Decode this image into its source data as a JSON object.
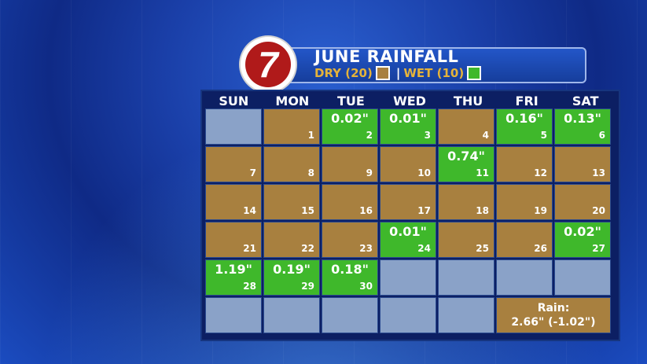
{
  "header": {
    "title": "JUNE RAINFALL",
    "dry_label": "DRY (20)",
    "wet_label": "WET (10)",
    "separator": "|",
    "logo_text": "7"
  },
  "days_of_week": [
    "SUN",
    "MON",
    "TUE",
    "WED",
    "THU",
    "FRI",
    "SAT"
  ],
  "colors": {
    "dry": "#a8803f",
    "wet": "#3fb82b",
    "empty": "#8aa2c8"
  },
  "cells": [
    {
      "status": "empty",
      "day": "",
      "amount": ""
    },
    {
      "status": "dry",
      "day": "1",
      "amount": ""
    },
    {
      "status": "wet",
      "day": "2",
      "amount": "0.02\""
    },
    {
      "status": "wet",
      "day": "3",
      "amount": "0.01\""
    },
    {
      "status": "dry",
      "day": "4",
      "amount": ""
    },
    {
      "status": "wet",
      "day": "5",
      "amount": "0.16\""
    },
    {
      "status": "wet",
      "day": "6",
      "amount": "0.13\""
    },
    {
      "status": "dry",
      "day": "7",
      "amount": ""
    },
    {
      "status": "dry",
      "day": "8",
      "amount": ""
    },
    {
      "status": "dry",
      "day": "9",
      "amount": ""
    },
    {
      "status": "dry",
      "day": "10",
      "amount": ""
    },
    {
      "status": "wet",
      "day": "11",
      "amount": "0.74\""
    },
    {
      "status": "dry",
      "day": "12",
      "amount": ""
    },
    {
      "status": "dry",
      "day": "13",
      "amount": ""
    },
    {
      "status": "dry",
      "day": "14",
      "amount": ""
    },
    {
      "status": "dry",
      "day": "15",
      "amount": ""
    },
    {
      "status": "dry",
      "day": "16",
      "amount": ""
    },
    {
      "status": "dry",
      "day": "17",
      "amount": ""
    },
    {
      "status": "dry",
      "day": "18",
      "amount": ""
    },
    {
      "status": "dry",
      "day": "19",
      "amount": ""
    },
    {
      "status": "dry",
      "day": "20",
      "amount": ""
    },
    {
      "status": "dry",
      "day": "21",
      "amount": ""
    },
    {
      "status": "dry",
      "day": "22",
      "amount": ""
    },
    {
      "status": "dry",
      "day": "23",
      "amount": ""
    },
    {
      "status": "wet",
      "day": "24",
      "amount": "0.01\""
    },
    {
      "status": "dry",
      "day": "25",
      "amount": ""
    },
    {
      "status": "dry",
      "day": "26",
      "amount": ""
    },
    {
      "status": "wet",
      "day": "27",
      "amount": "0.02\""
    },
    {
      "status": "wet",
      "day": "28",
      "amount": "1.19\""
    },
    {
      "status": "wet",
      "day": "29",
      "amount": "0.19\""
    },
    {
      "status": "wet",
      "day": "30",
      "amount": "0.18\""
    },
    {
      "status": "empty",
      "day": "",
      "amount": ""
    },
    {
      "status": "empty",
      "day": "",
      "amount": ""
    },
    {
      "status": "empty",
      "day": "",
      "amount": ""
    },
    {
      "status": "empty",
      "day": "",
      "amount": ""
    },
    {
      "status": "empty",
      "day": "",
      "amount": ""
    },
    {
      "status": "empty",
      "day": "",
      "amount": ""
    },
    {
      "status": "empty",
      "day": "",
      "amount": ""
    },
    {
      "status": "empty",
      "day": "",
      "amount": ""
    },
    {
      "status": "empty",
      "day": "",
      "amount": ""
    }
  ],
  "total": {
    "label": "Rain:",
    "value": "2.66\" (-1.02\")"
  }
}
